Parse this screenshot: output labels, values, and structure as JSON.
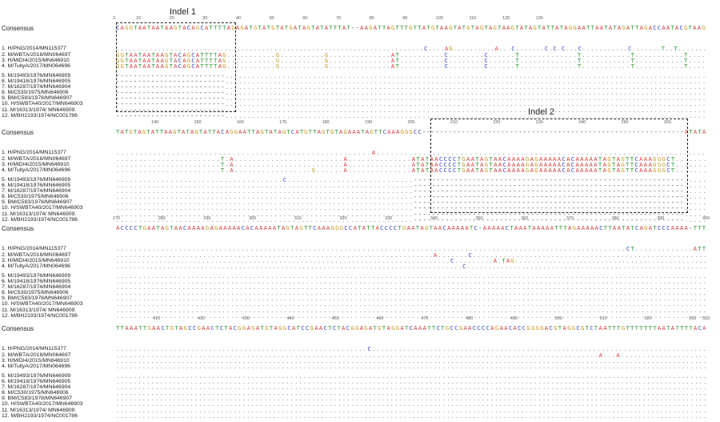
{
  "consensus_label": "Consensus",
  "samples": [
    "1. H/PNG/2014/MN115377",
    "2. M/WBTA/2018/MN064697",
    "3. H/MIDI4/2015/MN646910",
    "4. M/TullyA/2017/MN064696",
    "5. M/19493/1976/MN646909",
    "6. M/19418/1976/MN646905",
    "7. M/16287/1974/MN646904",
    "8. M/C530/1975/MN646906",
    "9. BM/C583/1978/MN646907",
    "10. H/SWBTA40/2017/MN646903",
    "11. M/16313/1974/ MN646909.",
    "12. M/BH2193/1974/NC001786"
  ],
  "indels": [
    {
      "label": "Indel 1"
    },
    {
      "label": "Indel 2"
    }
  ],
  "base_colors": {
    "A": "#d23a3a",
    "C": "#2f3fc8",
    "G": "#c79a1a",
    "T": "#2e9a35",
    "match": "#8a8a8a",
    "gap": "#333333"
  },
  "blocks": [
    {
      "ruler_start": 3,
      "ruler_end": 180,
      "ticks": [
        "3",
        "10",
        "20",
        "30",
        "40",
        "50",
        "60",
        "70",
        "80",
        "90",
        "100",
        "110",
        "120",
        "130"
      ],
      "consensus": "CAGGTAATAATAAGTACAGCATTTTAGAGATGTATGTATGATAGTATATTTAT--AAGATTAGTTTGTTATGTAAGTATGTAGTAGTAAGTATAGTATTATAGGAATTAATATAGATTAGACCAATACGTAAG",
      "rows": [
        "..........................................................................C....AG..........A...C.......C.C.C...C...........C.......T..T.......",
        "GGTAATAATAAGTACAGCATTTTAG...........G..........G..............AT..........C........C......T.............T...........T...........T....",
        "GGTAATAATAAGTACAGCATTTTAG...........G..........G..............AT..........C........C......T.............T...........T...........T....",
        "GGTAATAATAAGTACAGCATTTTAG...........G..........G..............AT..........C........C......T.............T...........T...........T....",
        "-------------------------..............................................................................................................",
        "-------------------------..............................................................................................................",
        "-------------------------..............................................................................................................",
        "-------------------------..............................................................................................................",
        "-------------------------..............................................................................................................",
        "-------------------------..............................................................................................................",
        "-------------------------..............................................................................................................",
        "-------------------------.............................................................................................................."
      ]
    },
    {
      "ruler_start": 131,
      "ruler_end": 269,
      "ticks": [
        "140",
        "150",
        "160",
        "170",
        "180",
        "190",
        "200",
        "210",
        "220",
        "230",
        "240",
        "250",
        "260"
      ],
      "consensus": "TATGTAGTATTAAGTATAGTATTACAGGAATTAGTATAGTCATGTTAGTGTAGAAATAGTTCAAAGGGCC------------------------------------------------------------ATATA",
      "rows": [
        ".......................................................A.......................................................................",
        ".......................T.A........................A..............ATATAACCCCTGAATAGTAACAAAAGAGAAAAACACAAAAATAGTAGTTCAAAGGGCT.......",
        ".......................T.A........................A..............ATATAACCCCTGAATAGTAACAAAAGAGAAAAACACAAAAATAGTAGTTCAAAGGGCT.......",
        ".......................T.A.................G......A..............ATATAACCCCTGAATAGTAACAAAAGAGAAAAACACAAAAATAGTAGTTCAAAGGGCT.......",
        ".....................................C............................------------------------------------------------------------.....",
        "..................................................................------------------------------------------------------------.....",
        "..................................................................------------------------------------------------------------.....",
        "..................................................................------------------------------------------------------------.....",
        "..................................................................------------------------------------------------------------.....",
        "..................................................................------------------------------------------------------------.....",
        "..................................................................------------------------------------------------------------.....",
        "..................................................................------------------------------------------------------------....."
      ]
    },
    {
      "ruler_start": 270,
      "ruler_end": 400,
      "ticks": [
        "270",
        "280",
        "290",
        "300",
        "310",
        "320",
        "330",
        "340",
        "350",
        "360",
        "370",
        "380",
        "390",
        "400"
      ],
      "consensus": "ACCCCTGAATAGTAACAAAAGAGAAAAACACAAAAATAGTAGTTCAAAGGGCCATATTACCCCTGAATAGTAACAAAAATC-AAAAACTAAATAAAAATTTAGAAAAACTTAATATCAGATCCCAAAA-TTT",
      "rows": [
        "..................................................................................................................CT.............ATT",
        ".........................................................................A.......C......................................................",
        "..............................................................................C.........A.TAG.............................................",
        "..................................................................................C.........................................................",
        "......................................................................................................................................",
        "......................................................................................................................................",
        "......................................................................................................................................",
        "......................................................................................................................................",
        "......................................................................................................................................",
        "......................................................................................................................................",
        "......................................................................................................................................",
        "......................................................................................................................................"
      ]
    },
    {
      "ruler_start": 401,
      "ruler_end": 533,
      "ticks": [
        "410",
        "420",
        "430",
        "440",
        "450",
        "460",
        "470",
        "480",
        "490",
        "500",
        "510",
        "520",
        "530",
        "533"
      ],
      "consensus": "TTAAATTGAACTGTAGCCGAACTCTACGGAGATGTAGGCATCCGAACTCTACGGAGATGTAGGATCAAATTCTGCCGAACCCCAGAACACCGGGGACGTAGGCGTCTAATTTGTTTTTTTAATATTTTACA",
      "rows": [
        ".........................................................C............................................................................",
        "...............................................................................................................A...A....................",
        "........................................................................................................................................",
        "........................................................................................................................................",
        "........................................................................................................................................",
        "........................................................................................................................................",
        "........................................................................................................................................",
        "........................................................................................................................................",
        "........................................................................................................................................",
        "........................................................................................................................................",
        "........................................................................................................................................",
        "........................................................................................................................................"
      ]
    }
  ]
}
